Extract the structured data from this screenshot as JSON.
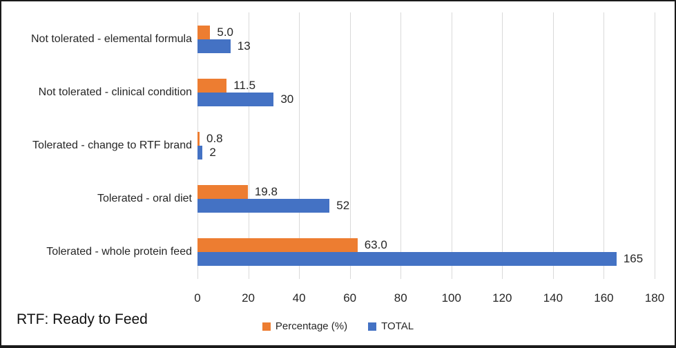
{
  "figure": {
    "footnote": "RTF: Ready to Feed"
  },
  "chart_data": {
    "type": "bar",
    "orientation": "horizontal",
    "title": "",
    "xlabel": "",
    "ylabel": "",
    "categories": [
      "Not tolerated - elemental formula",
      "Not tolerated - clinical condition",
      "Tolerated - change to RTF brand",
      "Tolerated - oral diet",
      "Tolerated - whole protein feed"
    ],
    "series": [
      {
        "name": "Percentage (%)",
        "color": "#ED7D31",
        "values": [
          5.0,
          11.5,
          0.8,
          19.8,
          63.0
        ],
        "labels": [
          "5.0",
          "11.5",
          "0.8",
          "19.8",
          "63.0"
        ]
      },
      {
        "name": "TOTAL",
        "color": "#4472C4",
        "values": [
          13,
          30,
          2,
          52,
          165
        ],
        "labels": [
          "13",
          "30",
          "2",
          "52",
          "165"
        ]
      }
    ],
    "x_axis": {
      "min": 0,
      "max": 180,
      "tick_step": 20,
      "tick_labels": [
        "0",
        "20",
        "40",
        "60",
        "80",
        "100",
        "120",
        "140",
        "160",
        "180"
      ]
    },
    "grid": true,
    "gridline_color": "#d9d9d9",
    "legend_position": "bottom"
  }
}
